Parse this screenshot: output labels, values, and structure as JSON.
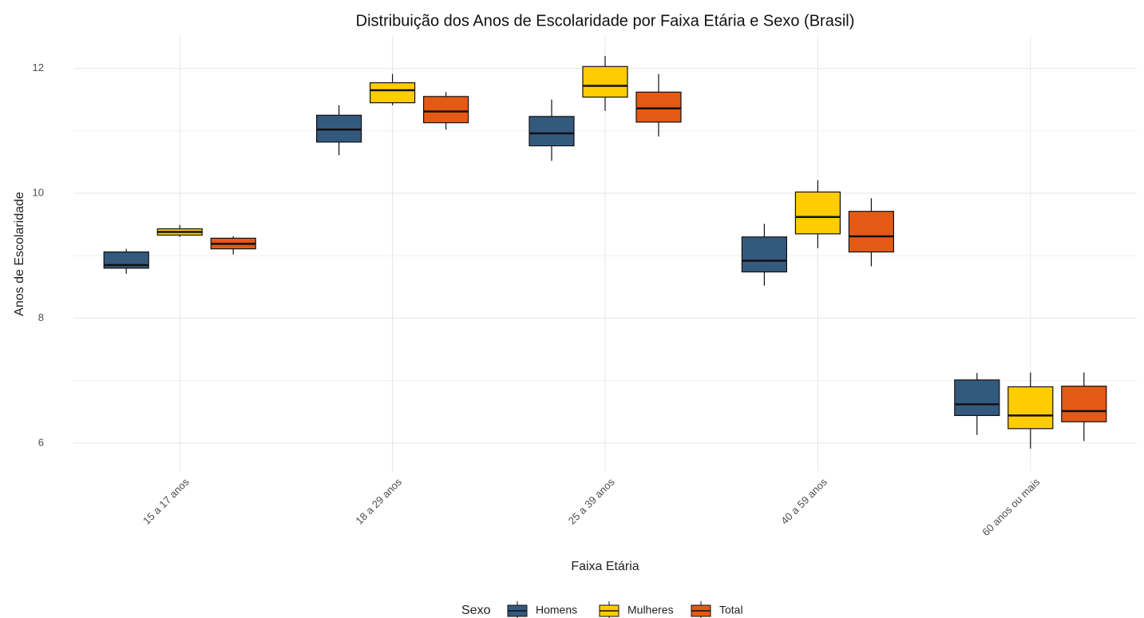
{
  "chart_data": {
    "type": "boxplot",
    "title": "Distribuição dos Anos de Escolaridade por Faixa Etária e Sexo (Brasil)",
    "x_label": "Faixa Etária",
    "y_label": "Anos de Escolaridade",
    "legend_title": "Sexo",
    "legend_position": "bottom",
    "grid": true,
    "categories": [
      "15 a 17 anos",
      "18 a 29 anos",
      "25 a 39 anos",
      "40 a 59 anos",
      "60 anos ou mais"
    ],
    "ylim": [
      5.55,
      12.52
    ],
    "yticks": [
      6,
      8,
      10,
      12
    ],
    "y_minor_ticks": [
      7,
      9,
      11
    ],
    "series": [
      {
        "name": "Homens",
        "color": "#34597e",
        "values": [
          {
            "min": 8.71,
            "q1": 8.8,
            "median": 8.85,
            "q3": 9.06,
            "max": 9.11
          },
          {
            "min": 10.61,
            "q1": 10.82,
            "median": 11.02,
            "q3": 11.25,
            "max": 11.41
          },
          {
            "min": 10.52,
            "q1": 10.76,
            "median": 10.96,
            "q3": 11.23,
            "max": 11.5
          },
          {
            "min": 8.52,
            "q1": 8.74,
            "median": 8.92,
            "q3": 9.3,
            "max": 9.51
          },
          {
            "min": 6.13,
            "q1": 6.44,
            "median": 6.62,
            "q3": 7.01,
            "max": 7.12
          }
        ]
      },
      {
        "name": "Mulheres",
        "color": "#ffcc00",
        "values": [
          {
            "min": 9.3,
            "q1": 9.33,
            "median": 9.38,
            "q3": 9.43,
            "max": 9.49
          },
          {
            "min": 11.41,
            "q1": 11.45,
            "median": 11.65,
            "q3": 11.77,
            "max": 11.91
          },
          {
            "min": 11.32,
            "q1": 11.54,
            "median": 11.72,
            "q3": 12.03,
            "max": 12.2
          },
          {
            "min": 9.12,
            "q1": 9.35,
            "median": 9.62,
            "q3": 10.02,
            "max": 10.21
          },
          {
            "min": 5.91,
            "q1": 6.23,
            "median": 6.44,
            "q3": 6.9,
            "max": 7.13
          }
        ]
      },
      {
        "name": "Total",
        "color": "#e35a17",
        "values": [
          {
            "min": 9.02,
            "q1": 9.11,
            "median": 9.19,
            "q3": 9.28,
            "max": 9.31
          },
          {
            "min": 11.02,
            "q1": 11.13,
            "median": 11.31,
            "q3": 11.55,
            "max": 11.62
          },
          {
            "min": 10.91,
            "q1": 11.14,
            "median": 11.36,
            "q3": 11.62,
            "max": 11.91
          },
          {
            "min": 8.83,
            "q1": 9.06,
            "median": 9.31,
            "q3": 9.71,
            "max": 9.92
          },
          {
            "min": 6.03,
            "q1": 6.34,
            "median": 6.51,
            "q3": 6.91,
            "max": 7.13
          }
        ]
      }
    ]
  }
}
